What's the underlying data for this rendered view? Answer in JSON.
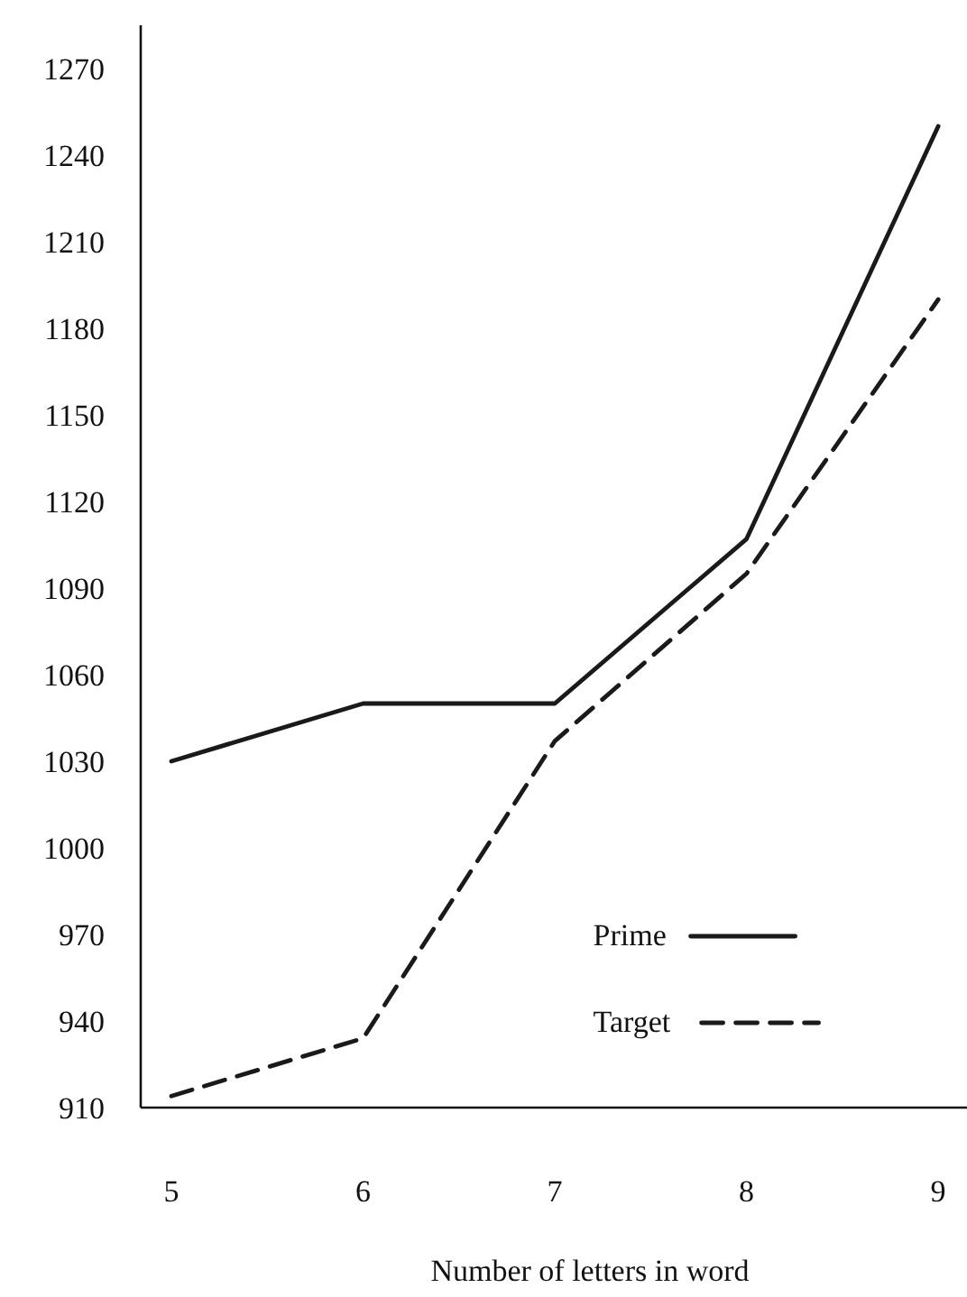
{
  "chart_data": {
    "type": "line",
    "xlabel": "Number of letters in word",
    "x": [
      5,
      6,
      7,
      8,
      9
    ],
    "xlim": [
      4.84,
      9.15
    ],
    "xticks": [
      5,
      6,
      7,
      8,
      9
    ],
    "ylim": [
      910,
      1285
    ],
    "yticks": [
      910,
      940,
      970,
      1000,
      1030,
      1060,
      1090,
      1120,
      1150,
      1180,
      1210,
      1240,
      1270
    ],
    "grid": false,
    "legend": "bottom right",
    "series": [
      {
        "name": "Prime",
        "color": "#1a1a1a",
        "line_style": "solid",
        "values": [
          1030,
          1050,
          1050,
          1107,
          1250
        ]
      },
      {
        "name": "Target",
        "color": "#1a1a1a",
        "line_style": "dashed",
        "values": [
          914,
          934,
          1037,
          1095,
          1190
        ]
      }
    ]
  }
}
